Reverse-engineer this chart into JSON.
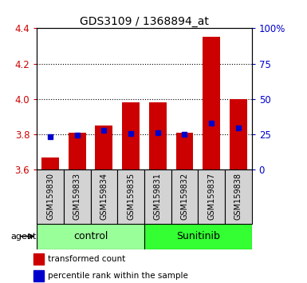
{
  "title": "GDS3109 / 1368894_at",
  "samples": [
    "GSM159830",
    "GSM159833",
    "GSM159834",
    "GSM159835",
    "GSM159831",
    "GSM159832",
    "GSM159837",
    "GSM159838"
  ],
  "bar_values": [
    3.67,
    3.81,
    3.85,
    3.98,
    3.98,
    3.81,
    4.35,
    4.0
  ],
  "percentile_values": [
    3.785,
    3.795,
    3.825,
    3.805,
    3.81,
    3.8,
    3.865,
    3.835
  ],
  "ymin": 3.6,
  "ymax": 4.4,
  "yticks": [
    3.6,
    3.8,
    4.0,
    4.2,
    4.4
  ],
  "y2min": 0,
  "y2max": 100,
  "y2ticks": [
    0,
    25,
    50,
    75,
    100
  ],
  "y2ticklabels": [
    "0",
    "25",
    "50",
    "75",
    "100%"
  ],
  "bar_color": "#cc0000",
  "percentile_color": "#0000cc",
  "bar_bottom": 3.6,
  "grid_yticks": [
    3.8,
    4.0,
    4.2
  ],
  "groups": [
    {
      "label": "control",
      "indices": [
        0,
        1,
        2,
        3
      ],
      "color": "#99ff99"
    },
    {
      "label": "Sunitinib",
      "indices": [
        4,
        5,
        6,
        7
      ],
      "color": "#33ff33"
    }
  ],
  "agent_label": "agent",
  "legend_items": [
    {
      "color": "#cc0000",
      "label": "transformed count"
    },
    {
      "color": "#0000cc",
      "label": "percentile rank within the sample"
    }
  ],
  "tick_label_color_left": "#cc0000",
  "tick_label_color_right": "#0000cc",
  "sample_bg_color": "#d3d3d3",
  "plot_bg_color": "#ffffff",
  "bar_width": 0.65,
  "figsize": [
    3.85,
    3.54
  ],
  "dpi": 100
}
